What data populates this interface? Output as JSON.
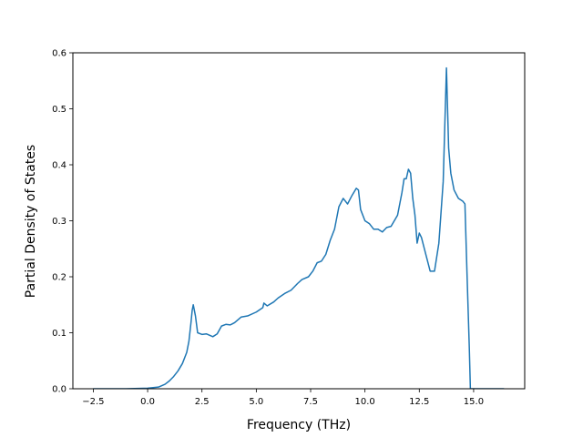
{
  "chart_data": {
    "type": "line",
    "title": "",
    "xlabel": "Frequency (THz)",
    "ylabel": "Partial Density of States",
    "xlim": [
      -3.44,
      17.35
    ],
    "ylim": [
      0.0,
      0.6
    ],
    "xticks": [
      -2.5,
      0.0,
      2.5,
      5.0,
      7.5,
      10.0,
      12.5,
      15.0
    ],
    "xtick_labels": [
      "−2.5",
      "0.0",
      "2.5",
      "5.0",
      "7.5",
      "10.0",
      "12.5",
      "15.0"
    ],
    "yticks": [
      0.0,
      0.1,
      0.2,
      0.3,
      0.4,
      0.5,
      0.6
    ],
    "ytick_labels": [
      "0.0",
      "0.1",
      "0.2",
      "0.3",
      "0.4",
      "0.5",
      "0.6"
    ],
    "grid": false,
    "legend": null,
    "series": [
      {
        "color": "#1f77b4",
        "x": [
          -2.5,
          -1.0,
          0.0,
          0.5,
          0.8,
          1.0,
          1.2,
          1.4,
          1.6,
          1.8,
          1.9,
          2.0,
          2.05,
          2.1,
          2.2,
          2.3,
          2.5,
          2.7,
          3.0,
          3.2,
          3.4,
          3.6,
          3.8,
          4.0,
          4.3,
          4.6,
          5.0,
          5.3,
          5.35,
          5.5,
          5.8,
          6.0,
          6.3,
          6.6,
          6.9,
          7.1,
          7.4,
          7.6,
          7.8,
          8.0,
          8.2,
          8.4,
          8.6,
          8.8,
          9.0,
          9.2,
          9.4,
          9.6,
          9.7,
          9.8,
          10.0,
          10.2,
          10.4,
          10.6,
          10.8,
          11.0,
          11.2,
          11.5,
          11.7,
          11.8,
          11.9,
          12.0,
          12.1,
          12.2,
          12.3,
          12.4,
          12.5,
          12.6,
          12.8,
          13.0,
          13.2,
          13.4,
          13.6,
          13.75,
          13.85,
          13.95,
          14.1,
          14.3,
          14.5,
          14.6,
          14.7,
          14.8,
          14.85,
          15.0,
          16.4
        ],
        "y": [
          0.0,
          0.0,
          0.001,
          0.003,
          0.008,
          0.014,
          0.022,
          0.032,
          0.045,
          0.065,
          0.085,
          0.12,
          0.14,
          0.15,
          0.13,
          0.1,
          0.097,
          0.098,
          0.093,
          0.098,
          0.112,
          0.115,
          0.114,
          0.118,
          0.128,
          0.13,
          0.137,
          0.145,
          0.153,
          0.148,
          0.155,
          0.162,
          0.17,
          0.176,
          0.188,
          0.195,
          0.2,
          0.21,
          0.225,
          0.228,
          0.24,
          0.265,
          0.285,
          0.325,
          0.34,
          0.33,
          0.345,
          0.358,
          0.355,
          0.32,
          0.3,
          0.295,
          0.285,
          0.285,
          0.28,
          0.288,
          0.29,
          0.31,
          0.35,
          0.375,
          0.375,
          0.392,
          0.385,
          0.34,
          0.31,
          0.26,
          0.278,
          0.27,
          0.24,
          0.21,
          0.21,
          0.26,
          0.37,
          0.573,
          0.43,
          0.385,
          0.355,
          0.34,
          0.335,
          0.33,
          0.2,
          0.075,
          0.0,
          0.0,
          0.0
        ]
      }
    ]
  }
}
